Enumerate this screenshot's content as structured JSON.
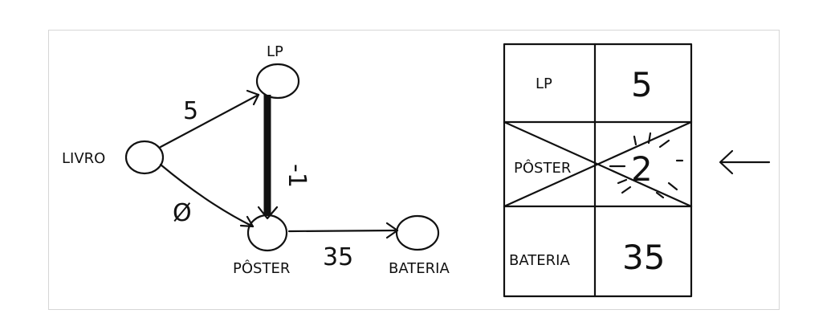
{
  "graph": {
    "nodes": {
      "livro": "LIVRO",
      "lp": "LP",
      "poster": "PÔSTER",
      "bateria": "BATERIA"
    },
    "edges": {
      "livro_lp": "5",
      "livro_poster": "Ø",
      "lp_poster": "-1",
      "poster_bateria": "35"
    }
  },
  "table": {
    "rows": [
      {
        "node": "LP",
        "cost": "5"
      },
      {
        "node": "PÔSTER",
        "cost": "2"
      },
      {
        "node": "BATERIA",
        "cost": "35"
      }
    ]
  },
  "colors": {
    "ink": "#111111",
    "frame": "#d6d6d6"
  },
  "icons": {
    "pointer": "left-arrow-icon"
  }
}
